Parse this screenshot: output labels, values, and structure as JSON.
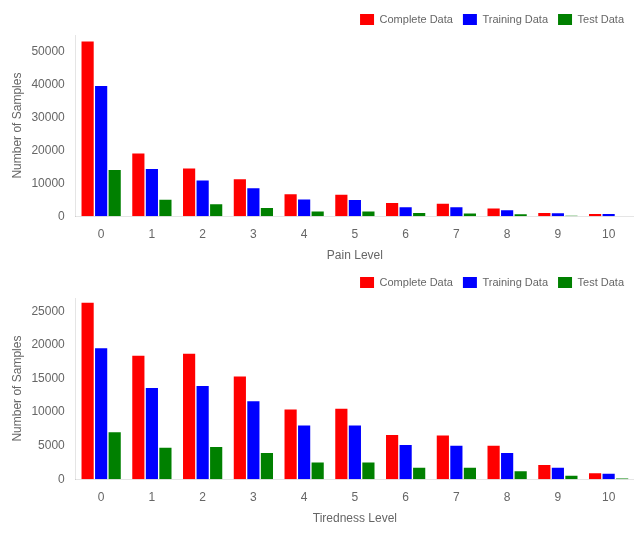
{
  "chart_data": [
    {
      "type": "bar",
      "xlabel": "Pain Level",
      "ylabel": "Number of Samples",
      "categories": [
        "0",
        "1",
        "2",
        "3",
        "4",
        "5",
        "6",
        "7",
        "8",
        "9",
        "10"
      ],
      "series": [
        {
          "name": "Complete Data",
          "color": "#ff0000",
          "values": [
            53000,
            19000,
            14500,
            11200,
            6700,
            6500,
            4000,
            3800,
            2300,
            1000,
            700
          ]
        },
        {
          "name": "Training Data",
          "color": "#0000ff",
          "values": [
            39500,
            14300,
            10800,
            8500,
            5100,
            4900,
            2700,
            2700,
            1800,
            900,
            700
          ]
        },
        {
          "name": "Test Data",
          "color": "#008000",
          "values": [
            14000,
            5000,
            3600,
            2500,
            1400,
            1400,
            1000,
            800,
            600,
            150,
            0
          ]
        }
      ],
      "ylim": [
        0,
        55000
      ],
      "yticks": [
        0,
        10000,
        20000,
        30000,
        40000,
        50000
      ],
      "grid": false,
      "legend": "upper right"
    },
    {
      "type": "bar",
      "xlabel": "Tiredness Level",
      "ylabel": "Number of Samples",
      "categories": [
        "0",
        "1",
        "2",
        "3",
        "4",
        "5",
        "6",
        "7",
        "8",
        "9",
        "10"
      ],
      "series": [
        {
          "name": "Complete Data",
          "color": "#ff0000",
          "values": [
            26300,
            18400,
            18700,
            15300,
            10400,
            10500,
            6600,
            6500,
            5000,
            2100,
            900
          ]
        },
        {
          "name": "Training Data",
          "color": "#0000ff",
          "values": [
            19500,
            13600,
            13900,
            11600,
            8000,
            8000,
            5100,
            5000,
            3900,
            1700,
            800
          ]
        },
        {
          "name": "Test Data",
          "color": "#008000",
          "values": [
            7000,
            4700,
            4800,
            3900,
            2500,
            2500,
            1700,
            1700,
            1200,
            500,
            100
          ]
        }
      ],
      "ylim": [
        0,
        27000
      ],
      "yticks": [
        0,
        5000,
        10000,
        15000,
        20000,
        25000
      ],
      "grid": false,
      "legend": "upper right"
    }
  ]
}
